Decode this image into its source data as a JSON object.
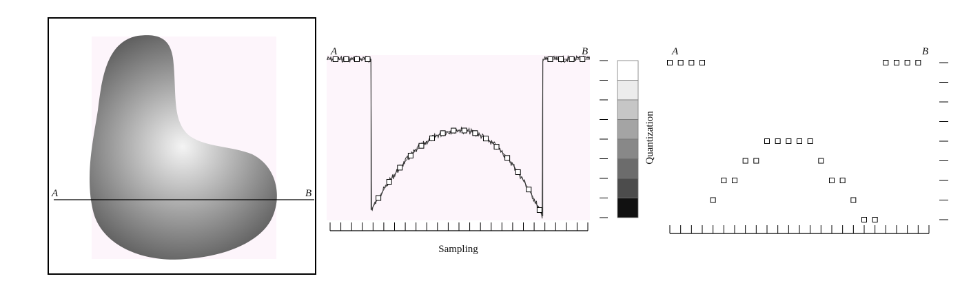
{
  "panel_image": {
    "label_a": "A",
    "label_b": "B",
    "background_color": "#fdf5fb",
    "shape_dark": "#303030",
    "shape_light": "#f4f4f4"
  },
  "panel_sampling": {
    "label_a": "A",
    "label_b": "B",
    "xlabel": "Sampling",
    "background_color": "#fdf5fb",
    "sample_count": 24
  },
  "quantization_scale": {
    "label": "Quantization",
    "levels": [
      "#ffffff",
      "#ececec",
      "#c6c6c6",
      "#a4a4a4",
      "#888888",
      "#6c6c6c",
      "#4c4c4c",
      "#111111"
    ]
  },
  "panel_quantized": {
    "label_a": "A",
    "label_b": "B"
  },
  "chart_data": {
    "type": "scatter",
    "title": "",
    "xlabel": "Sampling",
    "ylabel": "Quantization",
    "x": [
      1,
      2,
      3,
      4,
      5,
      6,
      7,
      8,
      9,
      10,
      11,
      12,
      13,
      14,
      15,
      16,
      17,
      18,
      19,
      20,
      21,
      22,
      23,
      24
    ],
    "quantized_levels": [
      8,
      8,
      8,
      8,
      1,
      2,
      2,
      3,
      3,
      4,
      4,
      4,
      4,
      4,
      3,
      2,
      2,
      1,
      0,
      0,
      8,
      8,
      8,
      8
    ],
    "ylim": [
      0,
      8
    ]
  }
}
